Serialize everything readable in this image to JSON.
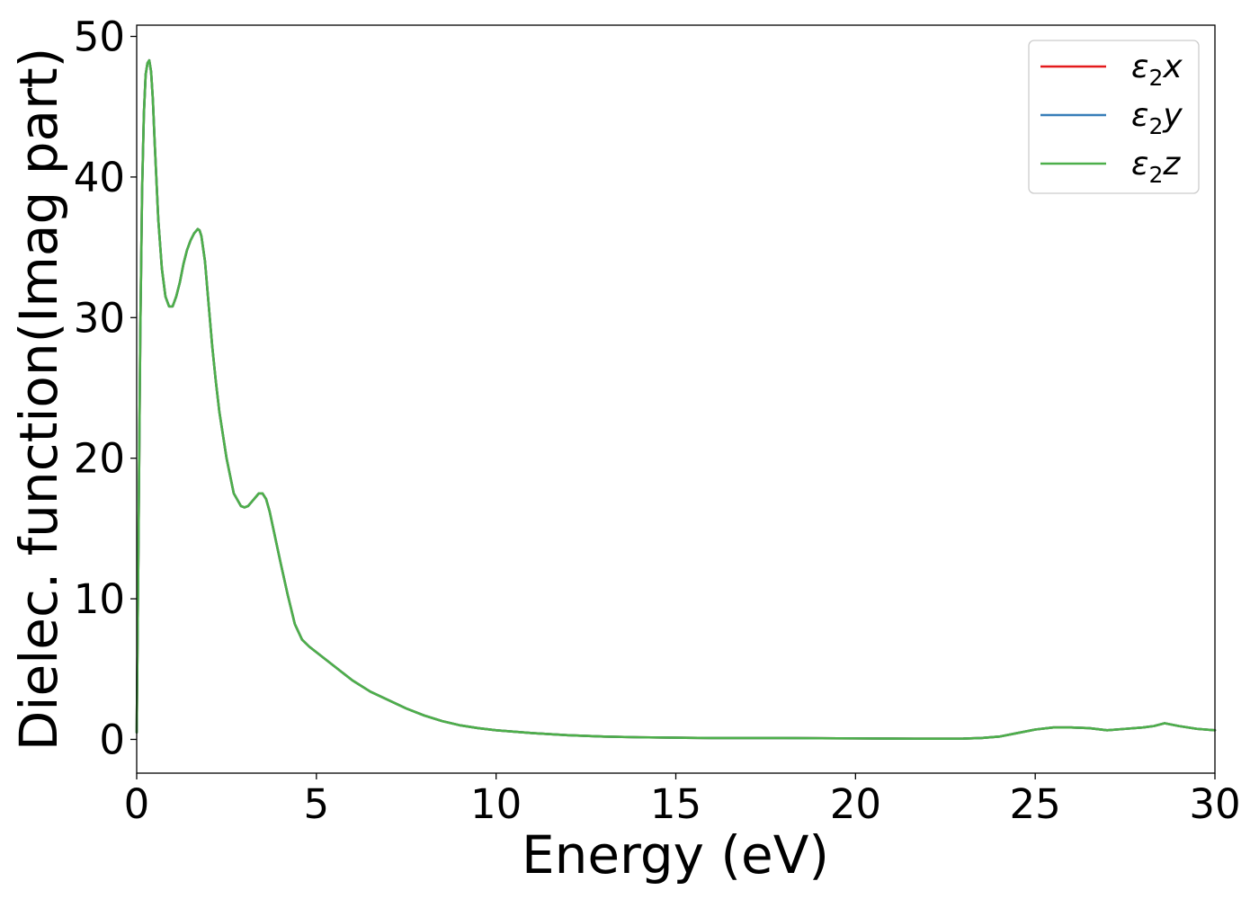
{
  "chart_data": {
    "type": "line",
    "title": "",
    "xlabel": "Energy (eV)",
    "ylabel": "Dielec. function(Imag part)",
    "xlim": [
      0,
      30
    ],
    "ylim": [
      -2.4,
      50.8
    ],
    "xticks": [
      "0",
      "5",
      "10",
      "15",
      "20",
      "25",
      "30"
    ],
    "yticks": [
      "0",
      "10",
      "20",
      "30",
      "40",
      "50"
    ],
    "grid": false,
    "legend_position": "top-right",
    "x": [
      0.0,
      0.05,
      0.1,
      0.15,
      0.2,
      0.25,
      0.3,
      0.35,
      0.4,
      0.45,
      0.5,
      0.6,
      0.7,
      0.8,
      0.9,
      1.0,
      1.1,
      1.2,
      1.3,
      1.4,
      1.5,
      1.6,
      1.7,
      1.75,
      1.8,
      1.9,
      2.0,
      2.1,
      2.2,
      2.3,
      2.5,
      2.7,
      2.9,
      3.0,
      3.1,
      3.2,
      3.3,
      3.4,
      3.5,
      3.6,
      3.7,
      3.8,
      3.9,
      4.0,
      4.2,
      4.4,
      4.6,
      4.8,
      5.0,
      5.5,
      6.0,
      6.5,
      7.0,
      7.5,
      8.0,
      8.5,
      9.0,
      9.5,
      10.0,
      11.0,
      12.0,
      13.0,
      14.0,
      15.0,
      16.0,
      17.0,
      18.0,
      19.0,
      20.0,
      21.0,
      22.0,
      23.0,
      23.5,
      24.0,
      24.5,
      25.0,
      25.5,
      26.0,
      26.5,
      27.0,
      27.5,
      28.0,
      28.3,
      28.6,
      29.0,
      29.5,
      30.0
    ],
    "series": [
      {
        "name": "ε₂x",
        "label_main": "ε",
        "label_sub": "2",
        "label_var": "x",
        "color": "#e41a1c",
        "values": [
          0.5,
          14.0,
          29.0,
          39.0,
          44.5,
          47.3,
          48.1,
          48.3,
          47.5,
          45.5,
          42.5,
          37.0,
          33.5,
          31.5,
          30.8,
          30.8,
          31.5,
          32.5,
          33.8,
          34.8,
          35.5,
          36.0,
          36.3,
          36.2,
          35.8,
          34.0,
          31.0,
          28.0,
          25.5,
          23.3,
          20.0,
          17.5,
          16.6,
          16.5,
          16.6,
          16.9,
          17.2,
          17.5,
          17.5,
          17.1,
          16.2,
          15.0,
          13.8,
          12.6,
          10.3,
          8.2,
          7.1,
          6.6,
          6.2,
          5.2,
          4.2,
          3.4,
          2.8,
          2.2,
          1.7,
          1.3,
          1.0,
          0.8,
          0.65,
          0.45,
          0.3,
          0.2,
          0.15,
          0.12,
          0.1,
          0.1,
          0.1,
          0.08,
          0.07,
          0.06,
          0.05,
          0.06,
          0.1,
          0.2,
          0.45,
          0.7,
          0.85,
          0.85,
          0.8,
          0.65,
          0.75,
          0.85,
          0.95,
          1.15,
          0.95,
          0.75,
          0.65
        ]
      },
      {
        "name": "ε₂y",
        "label_main": "ε",
        "label_sub": "2",
        "label_var": "y",
        "color": "#377eb8",
        "values": [
          0.5,
          14.0,
          29.0,
          39.0,
          44.5,
          47.3,
          48.1,
          48.3,
          47.5,
          45.5,
          42.5,
          37.0,
          33.5,
          31.5,
          30.8,
          30.8,
          31.5,
          32.5,
          33.8,
          34.8,
          35.5,
          36.0,
          36.3,
          36.2,
          35.8,
          34.0,
          31.0,
          28.0,
          25.5,
          23.3,
          20.0,
          17.5,
          16.6,
          16.5,
          16.6,
          16.9,
          17.2,
          17.5,
          17.5,
          17.1,
          16.2,
          15.0,
          13.8,
          12.6,
          10.3,
          8.2,
          7.1,
          6.6,
          6.2,
          5.2,
          4.2,
          3.4,
          2.8,
          2.2,
          1.7,
          1.3,
          1.0,
          0.8,
          0.65,
          0.45,
          0.3,
          0.2,
          0.15,
          0.12,
          0.1,
          0.1,
          0.1,
          0.08,
          0.07,
          0.06,
          0.05,
          0.06,
          0.1,
          0.2,
          0.45,
          0.7,
          0.85,
          0.85,
          0.8,
          0.65,
          0.75,
          0.85,
          0.95,
          1.15,
          0.95,
          0.75,
          0.65
        ]
      },
      {
        "name": "ε₂z",
        "label_main": "ε",
        "label_sub": "2",
        "label_var": "z",
        "color": "#4daf4a",
        "values": [
          0.5,
          14.0,
          29.0,
          39.0,
          44.5,
          47.3,
          48.1,
          48.3,
          47.5,
          45.5,
          42.5,
          37.0,
          33.5,
          31.5,
          30.8,
          30.8,
          31.5,
          32.5,
          33.8,
          34.8,
          35.5,
          36.0,
          36.3,
          36.2,
          35.8,
          34.0,
          31.0,
          28.0,
          25.5,
          23.3,
          20.0,
          17.5,
          16.6,
          16.5,
          16.6,
          16.9,
          17.2,
          17.5,
          17.5,
          17.1,
          16.2,
          15.0,
          13.8,
          12.6,
          10.3,
          8.2,
          7.1,
          6.6,
          6.2,
          5.2,
          4.2,
          3.4,
          2.8,
          2.2,
          1.7,
          1.3,
          1.0,
          0.8,
          0.65,
          0.45,
          0.3,
          0.2,
          0.15,
          0.12,
          0.1,
          0.1,
          0.1,
          0.08,
          0.07,
          0.06,
          0.05,
          0.06,
          0.1,
          0.2,
          0.45,
          0.7,
          0.85,
          0.85,
          0.8,
          0.65,
          0.75,
          0.85,
          0.95,
          1.15,
          0.95,
          0.75,
          0.65
        ]
      }
    ]
  }
}
